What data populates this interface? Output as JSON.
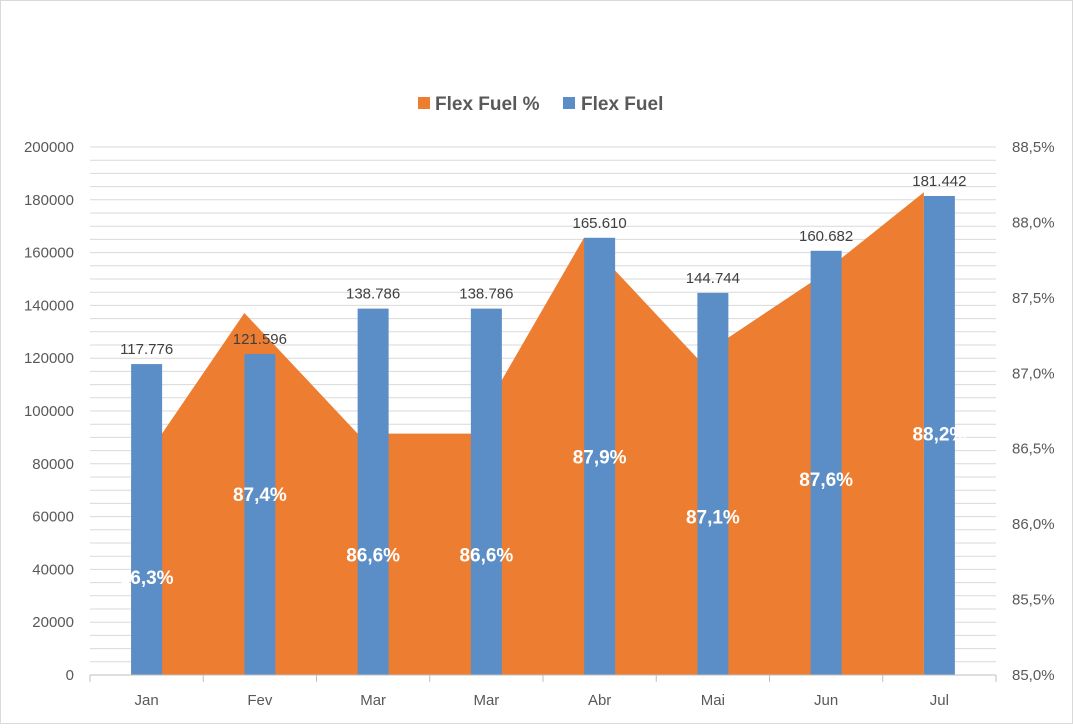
{
  "chart_data": {
    "type": "bar",
    "title": "",
    "categories": [
      "Jan",
      "Fev",
      "Mar",
      "Mar",
      "Abr",
      "Mai",
      "Jun",
      "Jul"
    ],
    "series": [
      {
        "name": "Flex Fuel %",
        "type": "area",
        "axis": "secondary",
        "color": "#ED7D31",
        "values": [
          86.3,
          87.4,
          86.6,
          86.6,
          87.9,
          87.1,
          87.6,
          88.2
        ],
        "labels": [
          "86,3%",
          "87,4%",
          "86,6%",
          "86,6%",
          "87,9%",
          "87,1%",
          "87,6%",
          "88,2%"
        ]
      },
      {
        "name": "Flex Fuel",
        "type": "bar",
        "axis": "primary",
        "color": "#5B8EC6",
        "values": [
          117776,
          121596,
          138786,
          138786,
          165610,
          144744,
          160682,
          181442
        ],
        "labels": [
          "117.776",
          "121.596",
          "138.786",
          "138.786",
          "165.610",
          "144.744",
          "160.682",
          "181.442"
        ]
      }
    ],
    "y_left": {
      "min": 0,
      "max": 200000,
      "ticks": [
        "0",
        "20000",
        "40000",
        "60000",
        "80000",
        "100000",
        "120000",
        "140000",
        "160000",
        "180000",
        "200000"
      ]
    },
    "y_right": {
      "min": 85.0,
      "max": 88.5,
      "ticks": [
        "85,0%",
        "85,5%",
        "86,0%",
        "86,5%",
        "87,0%",
        "87,5%",
        "88,0%",
        "88,5%"
      ]
    },
    "legend": {
      "position": "top",
      "items": [
        "Flex Fuel %",
        "Flex Fuel"
      ]
    },
    "grid": true,
    "grid_color": "#d9d9d9"
  }
}
